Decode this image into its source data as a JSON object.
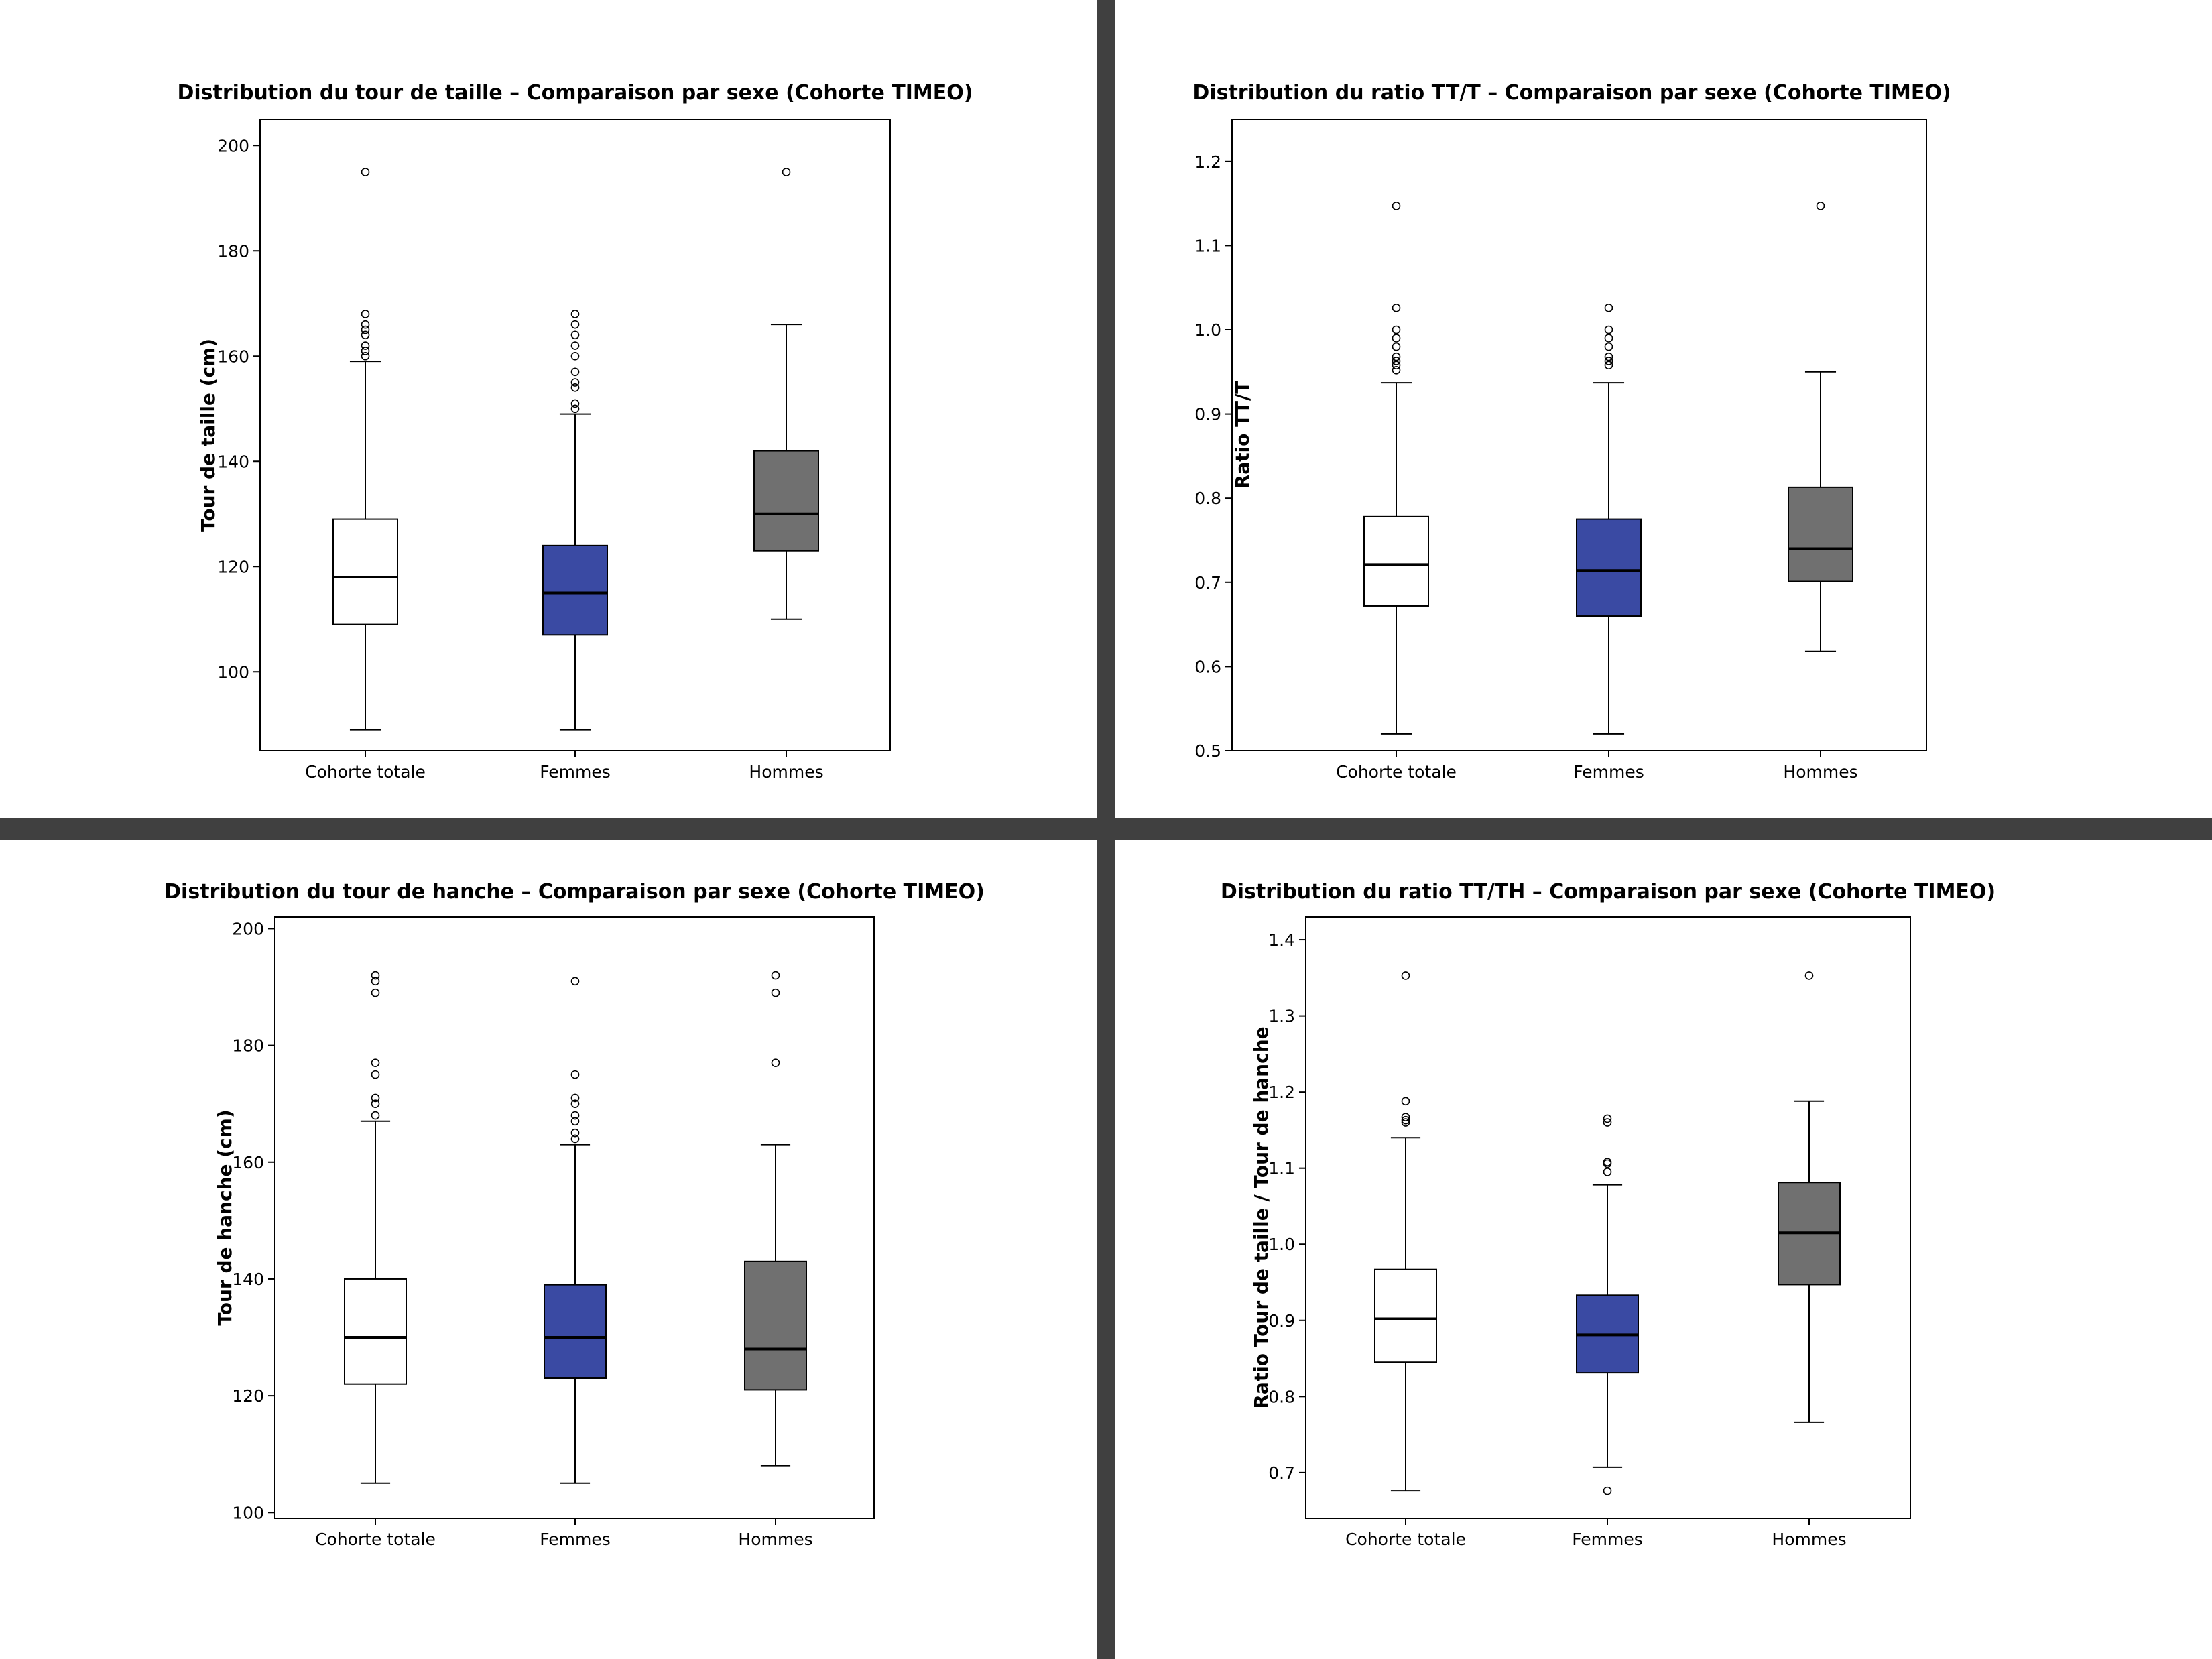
{
  "colors": {
    "divider": "#404040",
    "cohorte": "#ffffff",
    "femmes": "#3a4aa3",
    "hommes": "#707070",
    "line": "#000000"
  },
  "chart_data": [
    {
      "type": "boxplot",
      "title": "Distribution du tour de taille – Comparaison par sexe (Cohorte TIMEO)",
      "xlabel": "",
      "ylabel": "Tour de taille (cm)",
      "ylim": [
        85,
        205
      ],
      "yticks": [
        100,
        120,
        140,
        160,
        180,
        200
      ],
      "ytick_labels": [
        "100",
        "120",
        "140",
        "160",
        "180",
        "200"
      ],
      "categories": [
        "Cohorte totale",
        "Femmes",
        "Hommes"
      ],
      "boxes": [
        {
          "whisker_low": 89,
          "q1": 109,
          "median": 118,
          "q3": 129,
          "whisker_high": 159,
          "outliers": [
            160,
            161,
            162,
            164,
            165,
            166,
            168,
            195
          ]
        },
        {
          "whisker_low": 89,
          "q1": 107,
          "median": 115,
          "q3": 124,
          "whisker_high": 149,
          "outliers": [
            150,
            151,
            154,
            155,
            157,
            160,
            162,
            164,
            166,
            168
          ]
        },
        {
          "whisker_low": 110,
          "q1": 123,
          "median": 130,
          "q3": 142,
          "whisker_high": 166,
          "outliers": [
            195
          ]
        }
      ]
    },
    {
      "type": "boxplot",
      "title": "Distribution du ratio TT/T – Comparaison par sexe (Cohorte TIMEO)",
      "xlabel": "",
      "ylabel": "Ratio TT/T",
      "ylim": [
        0.5,
        1.25
      ],
      "yticks": [
        0.5,
        0.6,
        0.7,
        0.8,
        0.9,
        1.0,
        1.1,
        1.2
      ],
      "ytick_labels": [
        "0.5",
        "0.6",
        "0.7",
        "0.8",
        "0.9",
        "1.0",
        "1.1",
        "1.2"
      ],
      "categories": [
        "Cohorte totale",
        "Femmes",
        "Hommes"
      ],
      "boxes": [
        {
          "whisker_low": 0.52,
          "q1": 0.672,
          "median": 0.721,
          "q3": 0.778,
          "whisker_high": 0.937,
          "outliers": [
            0.952,
            0.958,
            0.963,
            0.968,
            0.98,
            0.99,
            1.0,
            1.026,
            1.147
          ]
        },
        {
          "whisker_low": 0.52,
          "q1": 0.66,
          "median": 0.714,
          "q3": 0.775,
          "whisker_high": 0.937,
          "outliers": [
            0.958,
            0.963,
            0.968,
            0.98,
            0.99,
            1.0,
            1.026
          ]
        },
        {
          "whisker_low": 0.618,
          "q1": 0.701,
          "median": 0.74,
          "q3": 0.813,
          "whisker_high": 0.95,
          "outliers": [
            1.147
          ]
        }
      ]
    },
    {
      "type": "boxplot",
      "title": "Distribution du tour de hanche – Comparaison par sexe (Cohorte TIMEO)",
      "xlabel": "",
      "ylabel": "Tour de hanche (cm)",
      "ylim": [
        99,
        202
      ],
      "yticks": [
        100,
        120,
        140,
        160,
        180,
        200
      ],
      "ytick_labels": [
        "100",
        "120",
        "140",
        "160",
        "180",
        "200"
      ],
      "categories": [
        "Cohorte totale",
        "Femmes",
        "Hommes"
      ],
      "boxes": [
        {
          "whisker_low": 105,
          "q1": 122,
          "median": 130,
          "q3": 140,
          "whisker_high": 167,
          "outliers": [
            168,
            170,
            171,
            175,
            177,
            189,
            191,
            192
          ]
        },
        {
          "whisker_low": 105,
          "q1": 123,
          "median": 130,
          "q3": 139,
          "whisker_high": 163,
          "outliers": [
            164,
            165,
            167,
            168,
            170,
            171,
            175,
            191
          ]
        },
        {
          "whisker_low": 108,
          "q1": 121,
          "median": 128,
          "q3": 143,
          "whisker_high": 163,
          "outliers": [
            177,
            189,
            192
          ]
        }
      ]
    },
    {
      "type": "boxplot",
      "title": "Distribution du ratio TT/TH – Comparaison par sexe (Cohorte TIMEO)",
      "xlabel": "",
      "ylabel": "Ratio Tour de taille / Tour de hanche",
      "ylim": [
        0.64,
        1.43
      ],
      "yticks": [
        0.7,
        0.8,
        0.9,
        1.0,
        1.1,
        1.2,
        1.3,
        1.4
      ],
      "ytick_labels": [
        "0.7",
        "0.8",
        "0.9",
        "1.0",
        "1.1",
        "1.2",
        "1.3",
        "1.4"
      ],
      "categories": [
        "Cohorte totale",
        "Femmes",
        "Hommes"
      ],
      "boxes": [
        {
          "whisker_low": 0.676,
          "q1": 0.845,
          "median": 0.902,
          "q3": 0.967,
          "whisker_high": 1.14,
          "outliers": [
            1.16,
            1.163,
            1.167,
            1.188,
            1.353
          ]
        },
        {
          "whisker_low": 0.707,
          "q1": 0.831,
          "median": 0.881,
          "q3": 0.933,
          "whisker_high": 1.078,
          "outliers": [
            0.676,
            1.095,
            1.106,
            1.108,
            1.16,
            1.165
          ]
        },
        {
          "whisker_low": 0.766,
          "q1": 0.947,
          "median": 1.015,
          "q3": 1.081,
          "whisker_high": 1.188,
          "outliers": [
            1.353
          ]
        }
      ]
    }
  ]
}
